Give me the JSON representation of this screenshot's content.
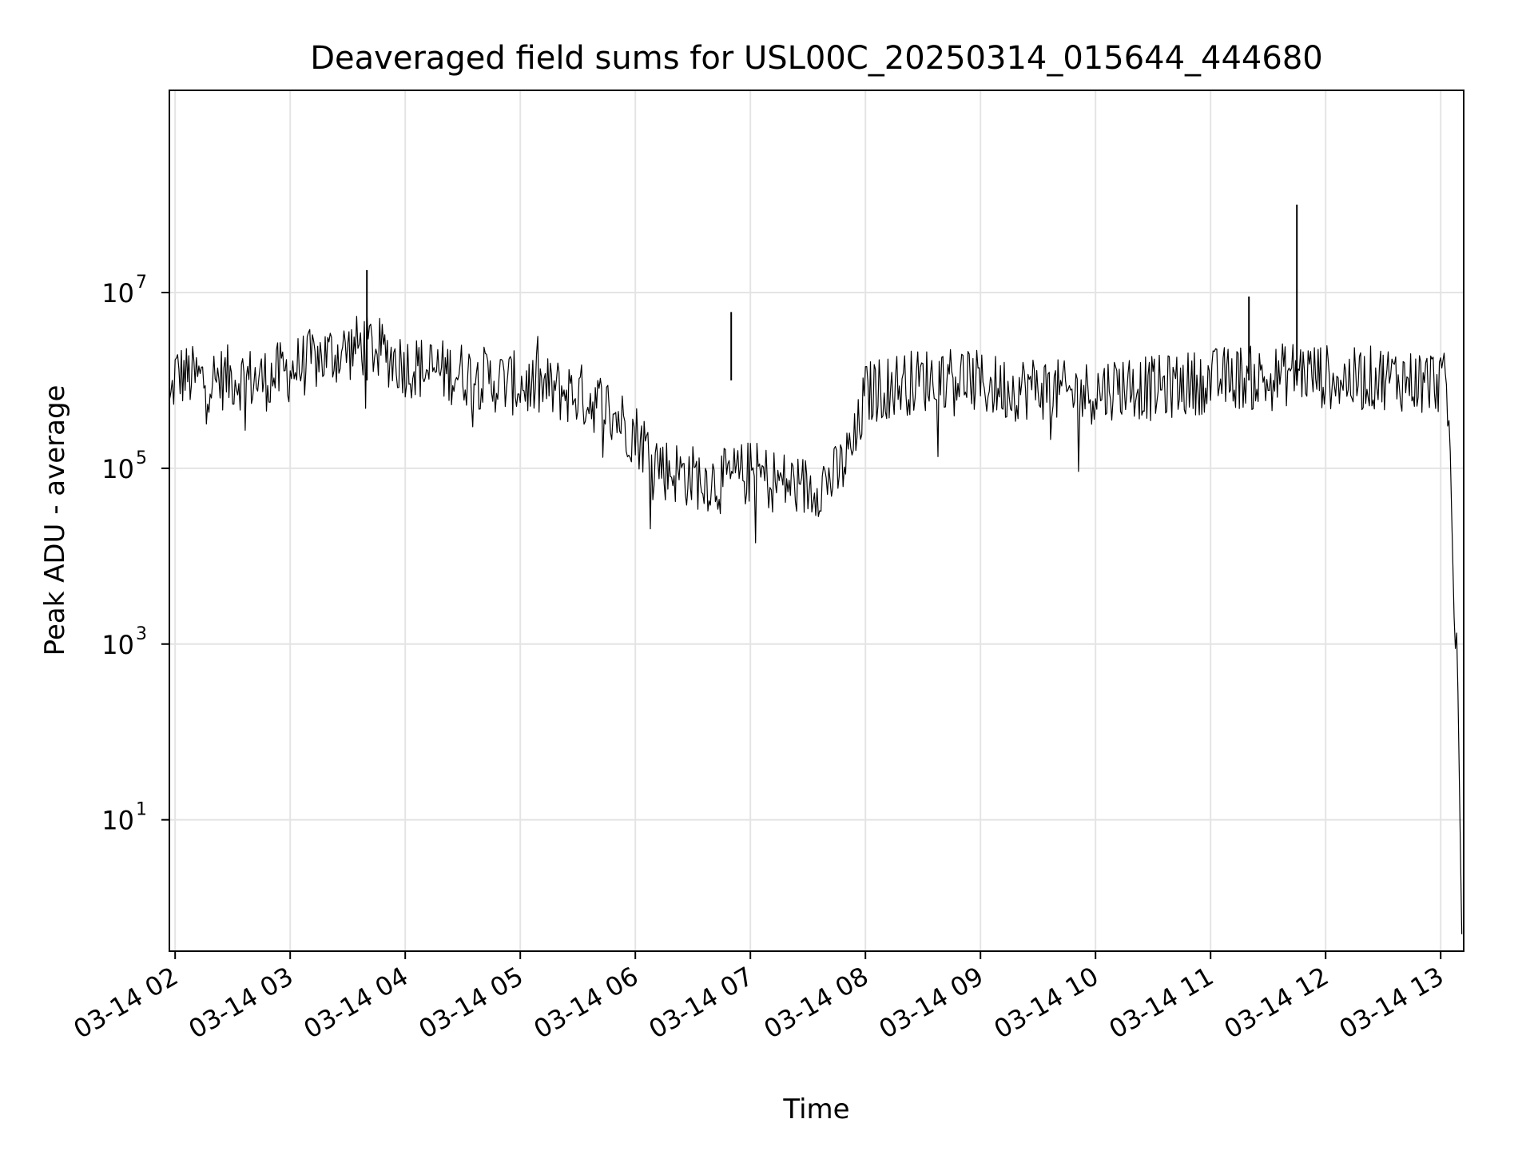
{
  "chart_data": {
    "type": "line",
    "title": "Deaveraged field sums for USL00C_20250314_015644_444680",
    "xlabel": "Time",
    "ylabel": "Peak ADU - average",
    "y_scale": "log",
    "ylim": [
      0.32,
      2000000000
    ],
    "xlim": [
      "03-14 01:57",
      "03-14 13:12"
    ],
    "x_ticks": [
      "03-14 02",
      "03-14 03",
      "03-14 04",
      "03-14 05",
      "03-14 06",
      "03-14 07",
      "03-14 08",
      "03-14 09",
      "03-14 10",
      "03-14 11",
      "03-14 12",
      "03-14 13"
    ],
    "y_ticks": [
      {
        "base": "10",
        "exp": "1",
        "value": 10
      },
      {
        "base": "10",
        "exp": "3",
        "value": 1000
      },
      {
        "base": "10",
        "exp": "5",
        "value": 100000
      },
      {
        "base": "10",
        "exp": "7",
        "value": 10000000
      }
    ],
    "grid": true,
    "line_color": "#000000",
    "series": [
      {
        "x": [
          "03-14 01:57",
          "03-14 02:00",
          "03-14 02:15",
          "03-14 02:30",
          "03-14 02:45",
          "03-14 03:00",
          "03-14 03:15",
          "03-14 03:30",
          "03-14 03:40",
          "03-14 04:00",
          "03-14 04:15",
          "03-14 04:30",
          "03-14 04:45",
          "03-14 05:00",
          "03-14 05:15",
          "03-14 05:30",
          "03-14 05:45",
          "03-14 06:00",
          "03-14 06:15",
          "03-14 06:30",
          "03-14 06:45",
          "03-14 07:00",
          "03-14 07:15",
          "03-14 07:30",
          "03-14 07:45",
          "03-14 07:55",
          "03-14 08:00",
          "03-14 08:15",
          "03-14 08:30",
          "03-14 08:45",
          "03-14 09:00",
          "03-14 09:15",
          "03-14 09:30",
          "03-14 09:45",
          "03-14 10:00",
          "03-14 10:15",
          "03-14 10:30",
          "03-14 10:45",
          "03-14 11:00",
          "03-14 11:15",
          "03-14 11:30",
          "03-14 11:45",
          "03-14 12:00",
          "03-14 12:15",
          "03-14 12:30",
          "03-14 12:45",
          "03-14 13:00",
          "03-14 13:03",
          "03-14 13:05",
          "03-14 13:07",
          "03-14 13:09",
          "03-14 13:11"
        ],
        "y": [
          450000,
          1200000,
          1000000,
          1100000,
          1000000,
          1300000,
          1800000,
          2200000,
          2600000,
          1500000,
          1300000,
          1200000,
          1000000,
          900000,
          800000,
          700000,
          500000,
          250000,
          100000,
          80000,
          70000,
          90000,
          70000,
          60000,
          80000,
          200000,
          700000,
          900000,
          1000000,
          1200000,
          900000,
          800000,
          850000,
          700000,
          750000,
          900000,
          800000,
          900000,
          1000000,
          1100000,
          1000000,
          1300000,
          1100000,
          1000000,
          1100000,
          1000000,
          1000000,
          800000,
          150000,
          2000,
          300,
          0.5
        ]
      }
    ],
    "spikes": [
      {
        "x": "03-14 03:40",
        "y": 18000000
      },
      {
        "x": "03-14 06:50",
        "y": 6000000
      },
      {
        "x": "03-14 11:20",
        "y": 9000000
      },
      {
        "x": "03-14 11:45",
        "y": 100000000
      }
    ]
  }
}
